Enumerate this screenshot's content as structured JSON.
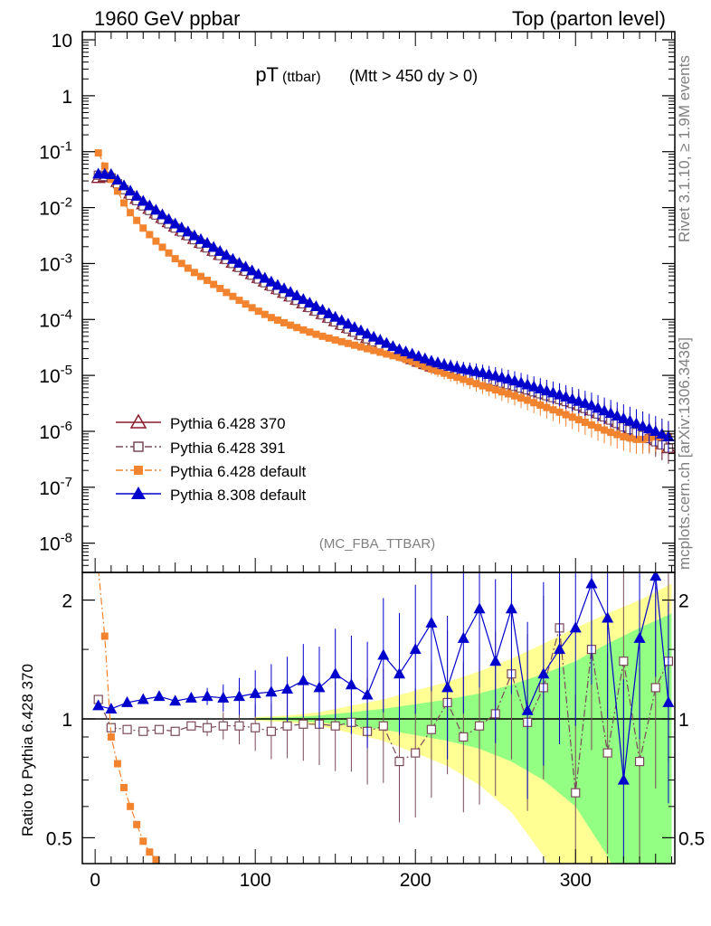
{
  "header": {
    "left": "1960 GeV ppbar",
    "right": "Top (parton level)"
  },
  "side_text": {
    "rivet": "Rivet 3.1.10, ≥ 1.9M events",
    "mcplots": "mcplots.cern.ch [arXiv:1306.3436]"
  },
  "watermark": "(MC_FBA_TTBAR)",
  "colors": {
    "p370": "#8b1a2b",
    "p391": "#7a4a5a",
    "p6def": "#f28430",
    "p8def": "#0000cc",
    "band_yellow": "#ffff80",
    "band_green": "#80ff80"
  },
  "chart_data": [
    {
      "type": "scatter",
      "title": "pT (ttbar) (Mtt > 450 dy > 0)",
      "title_main": "pT",
      "title_sub": "(ttbar)",
      "title_cond": "(Mtt > 450 dy > 0)",
      "xlabel": "",
      "ylabel": "",
      "xlim": [
        -8,
        362
      ],
      "ylim": [
        3e-09,
        14
      ],
      "yscale": "log",
      "x_ticks": [
        0,
        100,
        200,
        300
      ],
      "y_ticks": [
        1e-08,
        1e-07,
        1e-06,
        1e-05,
        0.0001,
        0.001,
        0.01,
        0.1,
        1,
        10
      ],
      "y_tick_labels": [
        {
          "base": "10",
          "exp": "-8"
        },
        {
          "base": "10",
          "exp": "-7"
        },
        {
          "base": "10",
          "exp": "-6"
        },
        {
          "base": "10",
          "exp": "-5"
        },
        {
          "base": "10",
          "exp": "-4"
        },
        {
          "base": "10",
          "exp": "-3"
        },
        {
          "base": "10",
          "exp": "-2"
        },
        {
          "base": "10",
          "exp": "-1"
        },
        {
          "base": "1",
          "exp": ""
        },
        {
          "base": "10",
          "exp": ""
        }
      ],
      "legend_position": "bottom-left",
      "legend": [
        {
          "label": "Pythia 6.428 370",
          "key": "p370",
          "marker": "triangle-open",
          "dash": "solid"
        },
        {
          "label": "Pythia 6.428 391",
          "key": "p391",
          "marker": "square-open",
          "dash": "dashdot"
        },
        {
          "label": "Pythia 6.428 default",
          "key": "p6def",
          "marker": "square-filled",
          "dash": "dashdot"
        },
        {
          "label": "Pythia 8.308 default",
          "key": "p8def",
          "marker": "triangle-filled",
          "dash": "solid"
        }
      ],
      "sample_x": [
        2,
        6,
        10,
        14,
        18,
        22,
        26,
        30,
        34,
        38,
        42,
        46,
        50,
        54,
        58,
        62,
        66,
        70,
        74,
        78,
        82,
        86,
        90,
        94,
        98,
        102,
        106,
        110,
        114,
        118,
        122,
        126,
        130,
        134,
        138,
        142,
        146,
        150,
        154,
        158,
        162,
        166,
        170,
        174,
        178,
        182,
        186,
        190,
        194,
        198,
        202,
        206,
        210,
        214,
        218,
        222,
        226,
        230,
        234,
        238,
        242,
        246,
        250,
        254,
        258,
        262,
        266,
        270,
        274,
        278,
        282,
        286,
        290,
        294,
        298,
        302,
        306,
        310,
        314,
        318,
        322,
        326,
        330,
        334,
        338,
        342,
        346,
        350,
        354,
        358
      ],
      "series": [
        {
          "name": "Pythia 6.428 370",
          "x": [
            2,
            10,
            20,
            30,
            40,
            50,
            60,
            70,
            80,
            90,
            100,
            110,
            120,
            130,
            140,
            150,
            160,
            170,
            180,
            190,
            200,
            210,
            220,
            230,
            240,
            250,
            260,
            270,
            280,
            290,
            300,
            310,
            320,
            330,
            340,
            350,
            358
          ],
          "y": [
            0.034,
            0.037,
            0.02,
            0.0115,
            0.0072,
            0.0046,
            0.003,
            0.002,
            0.00132,
            0.00089,
            0.0006,
            0.00041,
            0.00028,
            0.000195,
            0.000135,
            9.4e-05,
            6.6e-05,
            4.7e-05,
            3.4e-05,
            2.5e-05,
            1.85e-05,
            1.45e-05,
            1.25e-05,
            1.08e-05,
            9.5e-06,
            8.2e-06,
            7e-06,
            5.8e-06,
            4.8e-06,
            4e-06,
            3.2e-06,
            2.4e-06,
            1.8e-06,
            1.3e-06,
            9.5e-07,
            7e-07,
            5e-07
          ]
        },
        {
          "name": "Pythia 6.428 391",
          "x": [
            2,
            10,
            20,
            30,
            40,
            50,
            60,
            70,
            80,
            90,
            100,
            110,
            120,
            130,
            140,
            150,
            160,
            170,
            180,
            190,
            200,
            210,
            220,
            230,
            240,
            250,
            260,
            270,
            280,
            290,
            300,
            310,
            320,
            330,
            340,
            350,
            358
          ],
          "y": [
            0.038,
            0.034,
            0.0185,
            0.0107,
            0.0067,
            0.0043,
            0.0029,
            0.0019,
            0.00128,
            0.00085,
            0.00057,
            0.00039,
            0.00027,
            0.00019,
            0.00013,
            9e-05,
            6.3e-05,
            4.5e-05,
            3.3e-05,
            2.4e-05,
            1.8e-05,
            1.4e-05,
            1.2e-05,
            1.05e-05,
            9e-06,
            7.8e-06,
            6.6e-06,
            5.5e-06,
            4.5e-06,
            3.7e-06,
            3e-06,
            2.3e-06,
            1.7e-06,
            1.2e-06,
            9e-07,
            6.5e-07,
            5e-07
          ]
        },
        {
          "name": "Pythia 6.428 default",
          "x": [
            2,
            10,
            20,
            30,
            40,
            50,
            60,
            70,
            80,
            90,
            100,
            110,
            120,
            130,
            140,
            150,
            160,
            170,
            180,
            190,
            200,
            210,
            220,
            230,
            240,
            250,
            260,
            270,
            280,
            290,
            300,
            310,
            320,
            330,
            340,
            350,
            358
          ],
          "y": [
            0.095,
            0.032,
            0.0095,
            0.0043,
            0.0022,
            0.00122,
            0.00075,
            0.0005,
            0.00033,
            0.00022,
            0.00015,
            0.000108,
            8.3e-05,
            6.5e-05,
            5.2e-05,
            4.3e-05,
            3.6e-05,
            3e-05,
            2.5e-05,
            2.1e-05,
            1.7e-05,
            1.3e-05,
            1.05e-05,
            8.5e-06,
            6.8e-06,
            5.5e-06,
            4.5e-06,
            3.6e-06,
            2.8e-06,
            2.2e-06,
            1.7e-06,
            1.3e-06,
            1e-06,
            8e-07,
            7e-07,
            8e-07,
            8e-07
          ]
        },
        {
          "name": "Pythia 8.308 default",
          "x": [
            2,
            10,
            20,
            30,
            40,
            50,
            60,
            70,
            80,
            90,
            100,
            110,
            120,
            130,
            140,
            150,
            160,
            170,
            180,
            190,
            200,
            210,
            220,
            230,
            240,
            250,
            260,
            270,
            280,
            290,
            300,
            310,
            320,
            330,
            340,
            350,
            358
          ],
          "y": [
            0.04,
            0.039,
            0.022,
            0.013,
            0.0082,
            0.0051,
            0.0034,
            0.0023,
            0.00152,
            0.00101,
            0.00069,
            0.00047,
            0.00033,
            0.000228,
            0.000158,
            0.00011,
            7.7e-05,
            5.5e-05,
            4e-05,
            2.9e-05,
            2.3e-05,
            1.8e-05,
            1.5e-05,
            1.3e-05,
            1.15e-05,
            9.8e-06,
            8.3e-06,
            6.8e-06,
            5.5e-06,
            4.5e-06,
            3.6e-06,
            2.9e-06,
            2.2e-06,
            1.7e-06,
            1.3e-06,
            1e-06,
            8e-07
          ]
        }
      ]
    },
    {
      "type": "scatter",
      "title": "",
      "xlabel": "",
      "ylabel": "Ratio to Pythia 6.428 370",
      "xlim": [
        -8,
        362
      ],
      "ylim": [
        0.43,
        2.35
      ],
      "yscale": "log",
      "x_ticks": [
        0,
        100,
        200,
        300
      ],
      "y_ticks": [
        0.5,
        1,
        2
      ],
      "y_tick_labels": [
        "0.5",
        "1",
        "2"
      ],
      "x_tick_labels": [
        "0",
        "100",
        "200",
        "300"
      ],
      "reference_line": 1,
      "band_x": [
        100,
        120,
        140,
        160,
        180,
        200,
        220,
        240,
        260,
        280,
        300,
        320,
        340,
        360
      ],
      "band_green_halfwidth": [
        0.005,
        0.01,
        0.02,
        0.04,
        0.06,
        0.09,
        0.12,
        0.16,
        0.22,
        0.3,
        0.4,
        0.55,
        0.7,
        0.85
      ],
      "band_yellow_halfwidth": [
        0.01,
        0.02,
        0.04,
        0.08,
        0.12,
        0.18,
        0.24,
        0.32,
        0.42,
        0.55,
        0.7,
        0.85,
        1.0,
        1.2
      ],
      "series": [
        {
          "name": "Pythia 6.428 391",
          "x": [
            2,
            10,
            20,
            30,
            40,
            50,
            60,
            70,
            80,
            90,
            100,
            110,
            120,
            130,
            140,
            150,
            160,
            170,
            180,
            190,
            200,
            210,
            220,
            230,
            240,
            250,
            260,
            270,
            280,
            290,
            300,
            310,
            320,
            330,
            340,
            350,
            358
          ],
          "y": [
            1.12,
            0.95,
            0.94,
            0.93,
            0.94,
            0.93,
            0.96,
            0.95,
            0.96,
            0.96,
            0.95,
            0.93,
            0.96,
            0.97,
            0.97,
            0.96,
            0.98,
            0.93,
            0.96,
            0.78,
            0.82,
            0.94,
            1.1,
            0.9,
            0.96,
            1.03,
            1.3,
            0.98,
            1.2,
            1.7,
            0.65,
            1.5,
            0.82,
            1.4,
            0.78,
            1.2,
            1.4
          ]
        },
        {
          "name": "Pythia 6.428 default",
          "x": [
            2,
            6,
            10,
            14,
            18,
            22,
            26,
            30,
            34,
            38,
            42
          ],
          "y": [
            2.4,
            1.62,
            0.9,
            0.77,
            0.67,
            0.6,
            0.54,
            0.49,
            0.46,
            0.44,
            0.42
          ]
        },
        {
          "name": "Pythia 8.308 default",
          "x": [
            2,
            10,
            20,
            30,
            40,
            50,
            60,
            70,
            80,
            90,
            100,
            110,
            120,
            130,
            140,
            150,
            160,
            170,
            180,
            190,
            200,
            210,
            220,
            230,
            240,
            250,
            260,
            270,
            280,
            290,
            300,
            310,
            320,
            330,
            340,
            350,
            358
          ],
          "y": [
            1.08,
            1.06,
            1.1,
            1.12,
            1.14,
            1.11,
            1.13,
            1.14,
            1.13,
            1.14,
            1.16,
            1.17,
            1.19,
            1.25,
            1.2,
            1.3,
            1.22,
            1.15,
            1.45,
            1.3,
            1.5,
            1.75,
            1.2,
            1.6,
            1.9,
            1.4,
            1.9,
            1.05,
            1.3,
            1.5,
            1.7,
            2.2,
            1.8,
            0.7,
            1.6,
            2.3,
            1.1
          ]
        }
      ]
    }
  ]
}
